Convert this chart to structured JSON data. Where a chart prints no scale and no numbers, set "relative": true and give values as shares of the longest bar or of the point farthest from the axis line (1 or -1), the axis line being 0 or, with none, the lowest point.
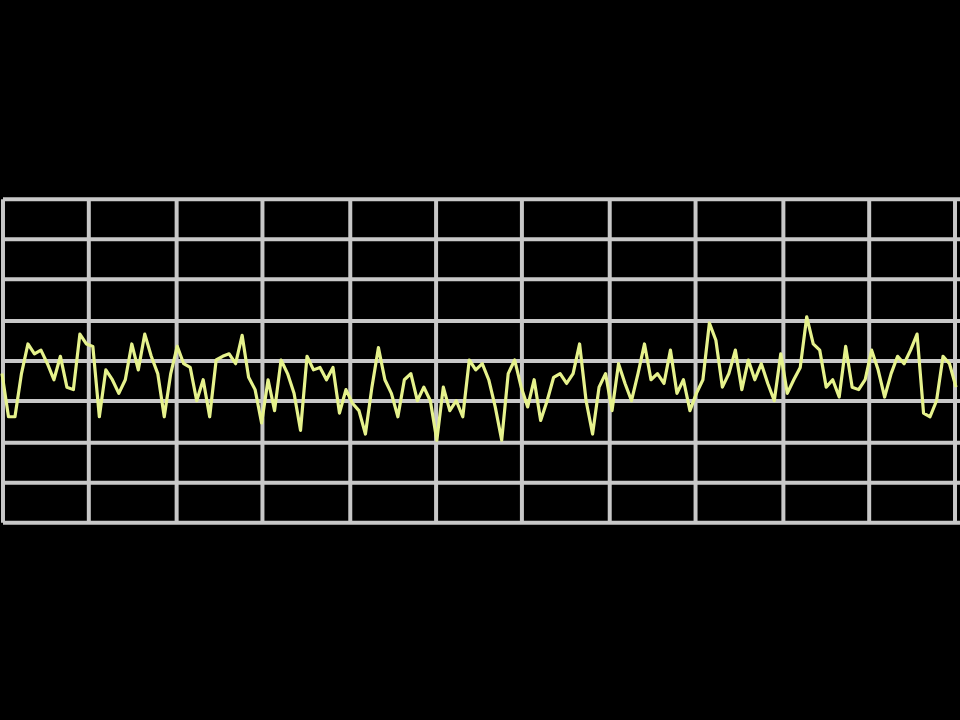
{
  "chart_data": {
    "type": "line",
    "relative": true,
    "grid": true,
    "tick_labels": false,
    "line_style": "solid",
    "marker": "none",
    "categories": [
      null,
      null,
      null,
      null,
      null,
      null,
      null,
      null,
      null,
      null,
      null,
      null,
      null,
      null,
      null,
      null,
      null,
      null,
      null,
      null,
      null,
      null,
      null,
      null,
      null,
      null,
      null,
      null,
      null,
      null,
      null,
      null,
      null,
      null,
      null,
      null,
      null,
      null,
      null,
      null,
      null,
      null,
      null,
      null,
      null,
      null,
      null,
      null,
      null,
      null,
      null,
      null,
      null,
      null,
      null,
      null,
      null,
      null,
      null,
      null,
      null,
      null,
      null,
      null,
      null,
      null,
      null,
      null,
      null,
      null,
      null,
      null,
      null,
      null,
      null,
      null,
      null,
      null,
      null,
      null,
      null,
      null,
      null,
      null,
      null,
      null,
      null,
      null,
      null,
      null,
      null,
      null,
      null,
      null,
      null,
      null,
      null,
      null,
      null,
      null,
      null,
      null,
      null,
      null,
      null,
      null,
      null,
      null,
      null,
      null,
      null,
      null,
      null,
      null,
      null,
      null,
      null,
      null,
      null,
      null,
      null,
      null,
      null,
      null,
      null,
      null,
      null,
      null,
      null,
      null,
      null,
      null,
      null,
      null,
      null,
      null,
      null,
      null,
      null,
      null,
      null,
      null,
      null,
      null,
      null,
      null,
      null,
      null
    ],
    "series": [
      {
        "color": "#e6f28c",
        "values": [
          0.54,
          0.19,
          0.19,
          0.54,
          0.78,
          0.7,
          0.73,
          0.62,
          0.49,
          0.68,
          0.43,
          0.41,
          0.86,
          0.78,
          0.76,
          0.19,
          0.57,
          0.49,
          0.38,
          0.49,
          0.78,
          0.57,
          0.86,
          0.68,
          0.54,
          0.19,
          0.54,
          0.76,
          0.62,
          0.59,
          0.32,
          0.49,
          0.19,
          0.65,
          0.68,
          0.7,
          0.62,
          0.85,
          0.51,
          0.41,
          0.14,
          0.49,
          0.24,
          0.65,
          0.54,
          0.38,
          0.08,
          0.68,
          0.57,
          0.59,
          0.49,
          0.59,
          0.22,
          0.41,
          0.3,
          0.24,
          0.05,
          0.43,
          0.75,
          0.49,
          0.38,
          0.19,
          0.49,
          0.54,
          0.32,
          0.43,
          0.32,
          0,
          0.43,
          0.24,
          0.32,
          0.19,
          0.65,
          0.57,
          0.62,
          0.49,
          0.27,
          0,
          0.54,
          0.65,
          0.43,
          0.27,
          0.49,
          0.16,
          0.32,
          0.51,
          0.54,
          0.46,
          0.54,
          0.78,
          0.32,
          0.05,
          0.43,
          0.54,
          0.24,
          0.62,
          0.46,
          0.32,
          0.54,
          0.78,
          0.49,
          0.54,
          0.46,
          0.73,
          0.38,
          0.49,
          0.24,
          0.38,
          0.49,
          0.95,
          0.81,
          0.43,
          0.54,
          0.73,
          0.41,
          0.65,
          0.49,
          0.62,
          0.46,
          0.32,
          0.7,
          0.38,
          0.49,
          0.59,
          1,
          0.78,
          0.73,
          0.43,
          0.49,
          0.35,
          0.76,
          0.43,
          0.41,
          0.49,
          0.73,
          0.57,
          0.35,
          0.54,
          0.68,
          0.62,
          0.73,
          0.86,
          0.22,
          0.19,
          0.32,
          0.68,
          0.62,
          0.43
        ]
      }
    ]
  }
}
